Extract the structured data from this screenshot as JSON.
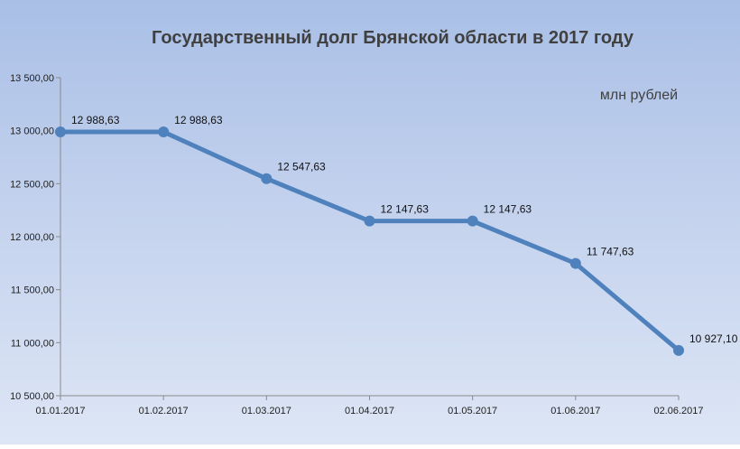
{
  "chart_data": {
    "type": "line",
    "title": "Государственный долг Брянской области в 2017 году",
    "units_label": "млн рублей",
    "xlabel": "",
    "ylabel": "",
    "categories": [
      "01.01.2017",
      "01.02.2017",
      "01.03.2017",
      "01.04.2017",
      "01.05.2017",
      "01.06.2017",
      "02.06.2017"
    ],
    "series": [
      {
        "values": [
          12988.63,
          12988.63,
          12547.63,
          12147.63,
          12147.63,
          11747.63,
          10927.1
        ],
        "data_labels": [
          "12 988,63",
          "12 988,63",
          "12 547,63",
          "12 147,63",
          "12 147,63",
          "11 747,63",
          "10 927,10"
        ],
        "color": "#4f81bd"
      }
    ],
    "ylim": [
      10500,
      13500
    ],
    "yticks": [
      10500,
      11000,
      11500,
      12000,
      12500,
      13000,
      13500
    ],
    "ytick_labels": [
      "10 500,00",
      "11 000,00",
      "11 500,00",
      "12 000,00",
      "12 500,00",
      "13 000,00",
      "13 500,00"
    ],
    "grid": false,
    "legend": "none"
  }
}
